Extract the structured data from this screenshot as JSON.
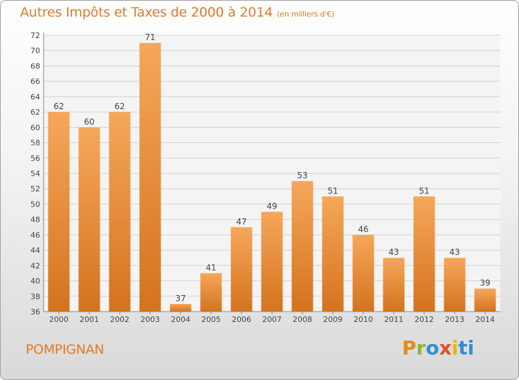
{
  "title": "Autres Impôts et Taxes de 2000 à 2014",
  "unit": "(en milliers d'€)",
  "city": "POMPIGNAN",
  "logo": "Proxiti",
  "colors": {
    "bar_light": "#f5a75a",
    "bar_dark": "#d4731e",
    "text_accent": "#e07a28"
  },
  "chart_data": {
    "type": "bar",
    "categories": [
      "2000",
      "2001",
      "2002",
      "2003",
      "2004",
      "2005",
      "2006",
      "2007",
      "2008",
      "2009",
      "2010",
      "2011",
      "2012",
      "2013",
      "2014"
    ],
    "values": [
      62,
      60,
      62,
      71,
      37,
      41,
      47,
      49,
      53,
      51,
      46,
      43,
      51,
      43,
      39
    ],
    "ylim": [
      36,
      72
    ],
    "yticks": [
      36,
      38,
      40,
      42,
      44,
      46,
      48,
      50,
      52,
      54,
      56,
      58,
      60,
      62,
      64,
      66,
      68,
      70,
      72
    ],
    "grid": true
  }
}
